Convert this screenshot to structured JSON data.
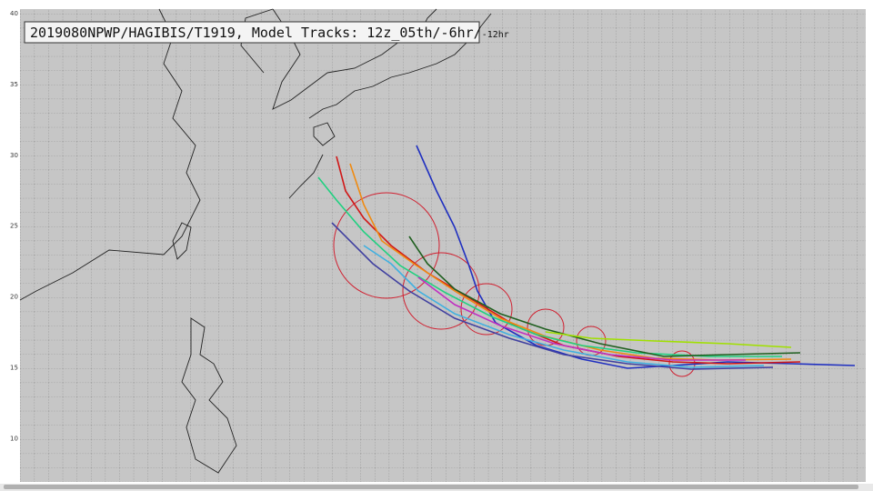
{
  "header": {
    "title": "2019080NPWP/HAGIBIS/T1919, Model Tracks: 12z_05th/-6hr/",
    "title_suffix": "-12hr"
  },
  "map": {
    "latitude_labels": [
      "40",
      "35",
      "30",
      "25",
      "20",
      "15",
      "10"
    ]
  }
}
